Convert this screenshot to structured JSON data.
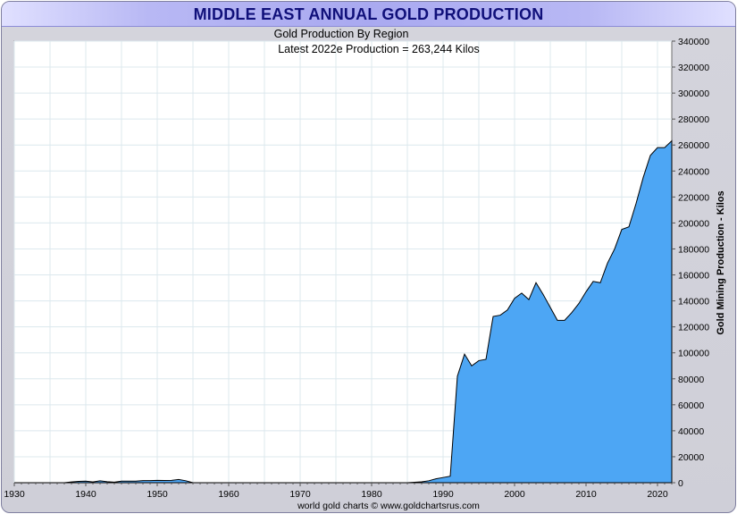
{
  "chart_data": {
    "type": "area",
    "title": "MIDDLE EAST ANNUAL GOLD PRODUCTION",
    "subtitle": "Gold Production By Region",
    "annotation": "Latest 2022e Production = 263,244 Kilos",
    "ylabel": "Gold Mining Production - Kilos",
    "xlabel": "",
    "footer": "world gold charts © www.goldchartsrus.com",
    "xlim": [
      1930,
      2022
    ],
    "ylim": [
      0,
      340000
    ],
    "x_ticks": [
      1930,
      1940,
      1950,
      1960,
      1970,
      1980,
      1990,
      2000,
      2010,
      2020
    ],
    "y_ticks": [
      0,
      20000,
      40000,
      60000,
      80000,
      100000,
      120000,
      140000,
      160000,
      180000,
      200000,
      220000,
      240000,
      260000,
      280000,
      300000,
      320000,
      340000
    ],
    "grid": true,
    "fill_color": "#4da6f4",
    "line_color": "#000000",
    "series": [
      {
        "x": [
          1930,
          1937,
          1938,
          1939,
          1940,
          1941,
          1942,
          1943,
          1944,
          1945,
          1946,
          1947,
          1948,
          1949,
          1950,
          1951,
          1952,
          1953,
          1954,
          1955,
          1956,
          1985,
          1986,
          1987,
          1988,
          1989,
          1990,
          1991,
          1992,
          1993,
          1994,
          1995,
          1996,
          1997,
          1998,
          1999,
          2000,
          2001,
          2002,
          2003,
          2004,
          2005,
          2006,
          2007,
          2008,
          2009,
          2010,
          2011,
          2012,
          2013,
          2014,
          2015,
          2016,
          2017,
          2018,
          2019,
          2020,
          2021,
          2022
        ],
        "values": [
          0,
          0,
          600,
          1000,
          1200,
          600,
          1500,
          800,
          400,
          1200,
          1200,
          1200,
          1600,
          1600,
          1800,
          1700,
          1800,
          2500,
          1500,
          0,
          0,
          0,
          300,
          700,
          1500,
          3000,
          4000,
          5000,
          82000,
          99000,
          90000,
          94000,
          95000,
          128000,
          129000,
          133000,
          142000,
          146000,
          141000,
          154000,
          145000,
          135000,
          125000,
          125000,
          131000,
          138000,
          147000,
          155000,
          154000,
          169000,
          180000,
          195000,
          197000,
          215000,
          235000,
          252000,
          258000,
          258000,
          263244
        ]
      }
    ]
  }
}
